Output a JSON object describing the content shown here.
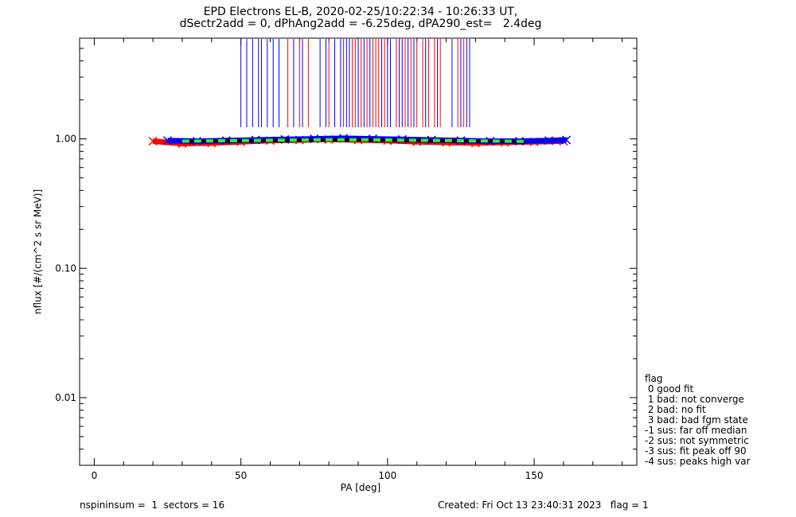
{
  "chart_data": {
    "type": "scatter",
    "title": "EPD Electrons EL-B, 2020-02-25/10:22:34 - 10:26:33 UT,",
    "subtitle": "dSectr2add = 0, dPhAng2add = -6.25deg, dPA290_est=   2.4deg",
    "xlabel": "PA [deg]",
    "ylabel": "nflux [#/(cm^2 s sr MeV)]",
    "xlim": [
      -5,
      185
    ],
    "ylim": [
      0.003,
      6
    ],
    "yscale": "log",
    "x_ticks": [
      0,
      50,
      100,
      150
    ],
    "x_tick_labels": [
      "0",
      "50",
      "100",
      "150"
    ],
    "y_ticks": [
      1.0,
      0.1,
      0.01
    ],
    "y_tick_labels": [
      "1.00",
      "0.10",
      "0.01"
    ],
    "series": [
      {
        "color": "#ff0000",
        "x": [
          20,
          30,
          40,
          50,
          60,
          70,
          80,
          90,
          100,
          110,
          120,
          130,
          140,
          150,
          160
        ],
        "y": [
          0.96,
          0.92,
          0.93,
          0.95,
          0.97,
          0.98,
          0.99,
          0.98,
          0.97,
          0.95,
          0.94,
          0.93,
          0.94,
          0.95,
          0.96
        ]
      },
      {
        "color": "#0000ff",
        "x": [
          25,
          35,
          45,
          55,
          65,
          75,
          85,
          95,
          105,
          115,
          125,
          135,
          145,
          155,
          161
        ],
        "y": [
          0.97,
          0.96,
          0.97,
          0.98,
          0.99,
          1.0,
          1.01,
          1.0,
          0.99,
          0.98,
          0.97,
          0.96,
          0.96,
          0.97,
          0.98
        ]
      },
      {
        "color": "#000000",
        "x": [
          30,
          40,
          50,
          60,
          70,
          80,
          90,
          100,
          110,
          120,
          130,
          140,
          147
        ],
        "y": [
          0.955,
          0.96,
          0.965,
          0.97,
          0.975,
          0.98,
          0.98,
          0.975,
          0.97,
          0.965,
          0.96,
          0.955,
          0.95
        ]
      },
      {
        "color": "#33ee33",
        "x": [
          30,
          40,
          50,
          60,
          70,
          80,
          90,
          100,
          110,
          120,
          130,
          140,
          147
        ],
        "y": [
          0.96,
          0.965,
          0.97,
          0.975,
          0.98,
          0.985,
          0.985,
          0.98,
          0.975,
          0.97,
          0.965,
          0.96,
          0.955
        ]
      }
    ],
    "vertical_lines_red": [
      66,
      70,
      73,
      80,
      85,
      88,
      89,
      91,
      93,
      95,
      96,
      97,
      99,
      103,
      106,
      108,
      110,
      112,
      114,
      116,
      118,
      124,
      126
    ],
    "vertical_lines_blue": [
      50,
      52,
      54,
      56,
      57,
      59,
      61,
      63,
      68,
      71,
      77,
      79,
      82,
      84,
      86,
      87,
      90,
      92,
      94,
      98,
      100,
      101,
      104,
      105,
      107,
      109,
      113,
      117,
      122,
      125,
      127,
      128
    ],
    "legend_title": "flag",
    "legend": [
      " 0 good fit",
      " 1 bad: not converge",
      " 2 bad: no fit",
      " 3 bad: bad fgm state",
      "-1 sus: far off median",
      "-2 sus: not symmetric",
      "-3 sus: fit peak off 90",
      "-4 sus: peaks high var"
    ]
  },
  "footer": {
    "left": "nspininsum =  1  sectors = 16",
    "right": "Created: Fri Oct 13 23:40:31 2023   flag = 1"
  }
}
